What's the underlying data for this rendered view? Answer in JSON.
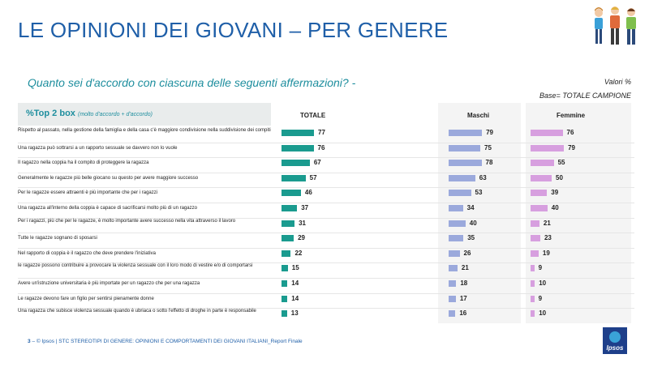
{
  "page_title": "LE OPINIONI DEI GIOVANI – PER GENERE",
  "question": "Quanto sei d'accordo con ciascuna delle seguenti affermazioni? -",
  "valori": "Valori %",
  "base": "Base= TOTALE CAMPIONE",
  "header_main": "%Top 2 box",
  "header_sub": "(molto d'accordo + d'accordo)",
  "footer": {
    "page_number": "3",
    "text": "– © Ipsos | STC STEREOTIPI DI GENERE: OPINIONI E COMPORTAMENTI DEI GIOVANI ITALIANI_Report Finale"
  },
  "logo_text": "Ipsos",
  "colors": {
    "title": "#1f5fa8",
    "accent": "#1e8e9e",
    "totale": "#1a9b8f",
    "maschi": "#9ba9dc",
    "femmine": "#d79fdf"
  },
  "chart_data": {
    "type": "bar",
    "orientation": "horizontal",
    "categories": [
      "Rispetto al passato, nella gestione della famiglia e della casa c'è maggiore condivisione nella suddivisione dei compiti",
      "Una ragazza può sottrarsi a un rapporto sessuale se davvero non lo vuole",
      "Il ragazzo nella coppia ha il compito di proteggere la ragazza",
      "Generalmente le ragazze più belle giocano su questo per avere maggiore successo",
      "Per le ragazze essere attraenti è più importante che per i ragazzi",
      "Una ragazza all'interno della coppia è capace di sacrificarsi molto più di un ragazzo",
      "Per i ragazzi, più che per le ragazze, è molto importante avere successo nella vita attraverso il lavoro",
      "Tutte le ragazze sognano di sposarsi",
      "Nel rapporto di coppia è il ragazzo che deve prendere l'iniziativa",
      "le ragazze possono contribuire a provocare la violenza sessuale con il loro modo di vestire e/o di comportarsi",
      "Avere un'istruzione universitaria è più importate per un ragazzo che per una ragazza",
      "Le ragazze devono fare un figlio per sentirsi pienamente donne",
      "Una ragazza che subisce violenza sessuale quando è ubriaca o sotto l'effetto di droghe in parte è responsabile"
    ],
    "series": [
      {
        "name": "TOTALE",
        "values": [
          77,
          76,
          67,
          57,
          46,
          37,
          31,
          29,
          22,
          15,
          14,
          14,
          13
        ]
      },
      {
        "name": "Maschi",
        "values": [
          79,
          75,
          78,
          63,
          53,
          34,
          40,
          35,
          26,
          21,
          18,
          17,
          16
        ]
      },
      {
        "name": "Femmine",
        "values": [
          76,
          79,
          55,
          50,
          39,
          40,
          21,
          23,
          19,
          9,
          10,
          9,
          10
        ]
      }
    ],
    "xlim": [
      0,
      100
    ]
  }
}
